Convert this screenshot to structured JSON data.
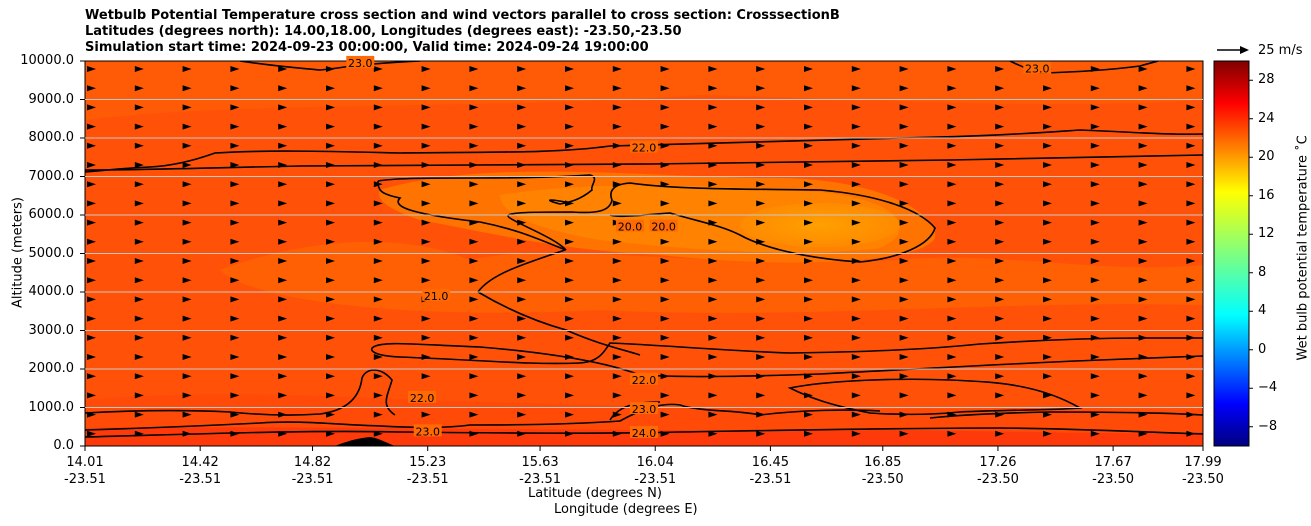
{
  "title_lines": [
    "Wetbulb Potential Temperature cross section and wind vectors parallel to cross section: CrosssectionB",
    "Latitudes (degrees north): 14.00,18.00, Longitudes (degrees east): -23.50,-23.50",
    "Simulation start time: 2024-09-23 00:00:00, Valid time: 2024-09-24 19:00:00"
  ],
  "chart_data": {
    "type": "heatmap",
    "ylabel": "Altitude (meters)",
    "xlabel_lines": [
      "Latitude (degrees N)",
      "Longitude (degrees E)"
    ],
    "ylim": [
      0,
      10000
    ],
    "yticks": [
      "0.0",
      "1000.0",
      "2000.0",
      "3000.0",
      "4000.0",
      "5000.0",
      "6000.0",
      "7000.0",
      "8000.0",
      "9000.0",
      "10000.0"
    ],
    "ytick_values": [
      0,
      1000,
      2000,
      3000,
      4000,
      5000,
      6000,
      7000,
      8000,
      9000,
      10000
    ],
    "xticks": [
      {
        "lat": "14.01",
        "lon": "-23.51"
      },
      {
        "lat": "14.42",
        "lon": "-23.51"
      },
      {
        "lat": "14.82",
        "lon": "-23.51"
      },
      {
        "lat": "15.23",
        "lon": "-23.51"
      },
      {
        "lat": "15.63",
        "lon": "-23.51"
      },
      {
        "lat": "16.04",
        "lon": "-23.51"
      },
      {
        "lat": "16.45",
        "lon": "-23.51"
      },
      {
        "lat": "16.85",
        "lon": "-23.50"
      },
      {
        "lat": "17.26",
        "lon": "-23.50"
      },
      {
        "lat": "17.67",
        "lon": "-23.50"
      },
      {
        "lat": "17.99",
        "lon": "-23.50"
      }
    ],
    "xlim": [
      14.01,
      17.99
    ],
    "grid": "horizontal",
    "colorbar": {
      "label": "Wet bulb potential temperature ˚C",
      "range": [
        -10,
        30
      ],
      "ticks": [
        "−8",
        "−4",
        "0",
        "4",
        "8",
        "12",
        "16",
        "20",
        "24",
        "28"
      ],
      "tick_values": [
        -8,
        -4,
        0,
        4,
        8,
        12,
        16,
        20,
        24,
        28
      ],
      "colormap": "jet"
    },
    "contour_labels": [
      {
        "text": "22.0",
        "lat": 16.0,
        "alt": 7750
      },
      {
        "text": "20.0",
        "lat": 15.95,
        "alt": 5700
      },
      {
        "text": "20.0",
        "lat": 16.07,
        "alt": 5700
      },
      {
        "text": "21.0",
        "lat": 15.26,
        "alt": 3900
      },
      {
        "text": "22.0",
        "lat": 16.0,
        "alt": 1720
      },
      {
        "text": "22.0",
        "lat": 15.21,
        "alt": 1250
      },
      {
        "text": "23.0",
        "lat": 16.0,
        "alt": 960
      },
      {
        "text": "23.0",
        "lat": 15.23,
        "alt": 380
      },
      {
        "text": "24.0",
        "lat": 16.0,
        "alt": 340
      },
      {
        "text": "23.0",
        "lat": 14.99,
        "alt": 9950
      },
      {
        "text": "23.0",
        "lat": 17.4,
        "alt": 9800
      }
    ],
    "quiver_key": "25 m/s",
    "wind_direction": "southward-to-northward (left to right), roughly uniform",
    "colors": {
      "background_field": "#ff5208",
      "core_field": "#ff8c00",
      "surface_layer": "#ff3a0a",
      "terrain": "#000000"
    }
  }
}
